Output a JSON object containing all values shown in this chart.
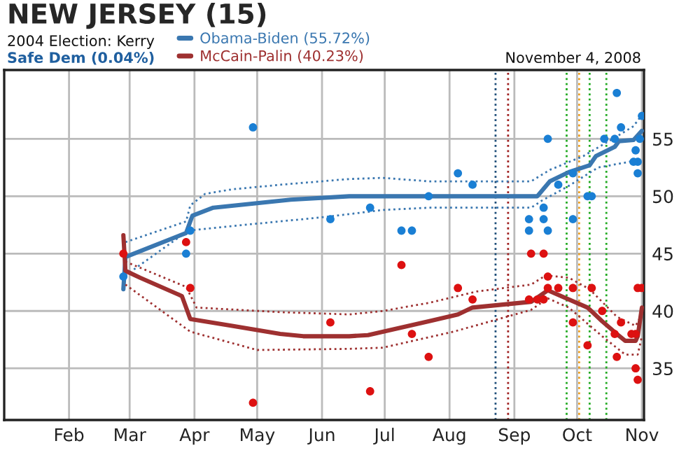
{
  "chart_data": {
    "type": "scatter",
    "title": "NEW JERSEY (15)",
    "annotations": [
      "2004 Election: Kerry",
      "Safe Dem (0.04%)",
      "November 4, 2008"
    ],
    "xlim": [
      "2008-01-01",
      "2008-11-02"
    ],
    "xticks": [
      {
        "value": "2008-02-01",
        "label": "Feb"
      },
      {
        "value": "2008-03-01",
        "label": "Mar"
      },
      {
        "value": "2008-04-01",
        "label": "Apr"
      },
      {
        "value": "2008-05-01",
        "label": "May"
      },
      {
        "value": "2008-06-01",
        "label": "Jun"
      },
      {
        "value": "2008-07-01",
        "label": "Jul"
      },
      {
        "value": "2008-08-01",
        "label": "Aug"
      },
      {
        "value": "2008-09-01",
        "label": "Sep"
      },
      {
        "value": "2008-10-01",
        "label": "Oct"
      },
      {
        "value": "2008-11-01",
        "label": "Nov"
      }
    ],
    "ylim": [
      30.5,
      61
    ],
    "yticks": [
      35,
      40,
      45,
      50,
      55
    ],
    "grid": true,
    "legend": "top",
    "ref_lines": [
      {
        "axis": "x",
        "value": "2008-08-23",
        "color": "#1f4e79",
        "line_style": "dotted"
      },
      {
        "axis": "x",
        "value": "2008-08-29",
        "color": "#a02020",
        "line_style": "dotted"
      },
      {
        "axis": "x",
        "value": "2008-09-26",
        "color": "#22aa22",
        "line_style": "dotted"
      },
      {
        "axis": "x",
        "value": "2008-10-02",
        "color": "#f0a020",
        "line_style": "dotted"
      },
      {
        "axis": "x",
        "value": "2008-10-07",
        "color": "#22aa22",
        "line_style": "dotted"
      },
      {
        "axis": "x",
        "value": "2008-10-15",
        "color": "#22aa22",
        "line_style": "dotted"
      }
    ],
    "series": [
      {
        "color": "#1a7fd4",
        "marker": "circle",
        "x": [
          "2008-02-27",
          "2008-03-28",
          "2008-03-30",
          "2008-04-29",
          "2008-06-05",
          "2008-06-24",
          "2008-07-09",
          "2008-07-22",
          "2008-08-05",
          "2008-08-12",
          "2008-09-08",
          "2008-09-08",
          "2008-09-15",
          "2008-09-15",
          "2008-09-17",
          "2008-09-22",
          "2008-09-29",
          "2008-10-06",
          "2008-10-08",
          "2008-10-14",
          "2008-10-19",
          "2008-10-20",
          "2008-10-22",
          "2008-10-29",
          "2008-10-30",
          "2008-10-30",
          "2008-10-31",
          "2008-11-01"
        ],
        "values": [
          43,
          45,
          47,
          56,
          48,
          49,
          47,
          50,
          52,
          51,
          48,
          47,
          48,
          49,
          55,
          51,
          52,
          50,
          50,
          55,
          55,
          59,
          56,
          54,
          53,
          52,
          55,
          57
        ]
      },
      {
        "color": "#1a7fd4",
        "marker": "circle",
        "x": [
          "2008-07-14",
          "2008-09-17",
          "2008-09-29",
          "2008-10-28"
        ],
        "values": [
          47,
          47,
          48,
          53
        ]
      },
      {
        "color": "#dd1111",
        "marker": "circle",
        "x": [
          "2008-02-27",
          "2008-03-28",
          "2008-03-30",
          "2008-04-29",
          "2008-06-05",
          "2008-06-24",
          "2008-07-09",
          "2008-07-22",
          "2008-08-05",
          "2008-08-12",
          "2008-09-08",
          "2008-09-09",
          "2008-09-12",
          "2008-09-15",
          "2008-09-15",
          "2008-09-17",
          "2008-09-22",
          "2008-09-29",
          "2008-10-06",
          "2008-10-08",
          "2008-10-13",
          "2008-10-19",
          "2008-10-20",
          "2008-10-22",
          "2008-10-29",
          "2008-10-29",
          "2008-10-30",
          "2008-10-30",
          "2008-11-01"
        ],
        "values": [
          45,
          46,
          42,
          32,
          39,
          33,
          44,
          36,
          42,
          41,
          41,
          45,
          41,
          45,
          41,
          42,
          42,
          42,
          37,
          42,
          40,
          38,
          36,
          39,
          38,
          35,
          34,
          42,
          42
        ]
      },
      {
        "color": "#dd1111",
        "marker": "circle",
        "x": [
          "2008-07-14",
          "2008-09-17",
          "2008-09-29",
          "2008-10-27"
        ],
        "values": [
          38,
          43,
          39,
          38
        ]
      },
      {
        "type": "line",
        "name": "Obama-Biden (55.72%)",
        "color": "#3a77b0",
        "x": [
          "2008-02-27",
          "2008-02-28",
          "2008-03-28",
          "2008-03-31",
          "2008-04-10",
          "2008-05-17",
          "2008-06-14",
          "2008-06-28",
          "2008-09-12",
          "2008-09-18",
          "2008-09-27",
          "2008-10-07",
          "2008-10-10",
          "2008-10-19",
          "2008-10-21",
          "2008-10-28",
          "2008-11-01"
        ],
        "values": [
          41.9,
          44.7,
          46.8,
          48.3,
          49.0,
          49.7,
          50.0,
          50.0,
          50.0,
          51.3,
          52.1,
          52.7,
          53.5,
          54.3,
          54.8,
          54.9,
          55.7
        ]
      },
      {
        "type": "line",
        "color": "#3a77b0",
        "line_style": "dotted",
        "x": [
          "2008-02-28",
          "2008-03-28",
          "2008-03-30",
          "2008-04-06",
          "2008-04-19",
          "2008-05-12",
          "2008-06-14",
          "2008-06-30",
          "2008-07-22",
          "2008-09-09",
          "2008-09-18",
          "2008-10-04",
          "2008-10-19",
          "2008-10-28",
          "2008-11-01"
        ],
        "values": [
          46.0,
          47.8,
          49.2,
          50.2,
          50.6,
          51.0,
          51.5,
          51.6,
          51.3,
          51.3,
          52.3,
          53.5,
          55.1,
          56.1,
          57.1
        ]
      },
      {
        "type": "line",
        "color": "#3a77b0",
        "line_style": "dotted",
        "x": [
          "2008-02-28",
          "2008-03-29",
          "2008-04-19",
          "2008-06-03",
          "2008-06-30",
          "2008-07-22",
          "2008-09-09",
          "2008-09-14",
          "2008-09-27",
          "2008-10-11",
          "2008-10-29",
          "2008-11-01"
        ],
        "values": [
          43.1,
          47.0,
          47.4,
          48.2,
          48.8,
          49.0,
          49.0,
          49.6,
          50.9,
          52.5,
          53.1,
          52.9
        ]
      },
      {
        "type": "line",
        "name": "McCain-Palin (40.23%)",
        "color": "#9e3030",
        "x": [
          "2008-02-27",
          "2008-02-28",
          "2008-03-06",
          "2008-03-26",
          "2008-03-30",
          "2008-04-19",
          "2008-05-12",
          "2008-05-23",
          "2008-06-14",
          "2008-06-23",
          "2008-07-22",
          "2008-08-05",
          "2008-08-12",
          "2008-09-09",
          "2008-09-17",
          "2008-10-06",
          "2008-10-13",
          "2008-10-20",
          "2008-10-24",
          "2008-10-29",
          "2008-10-30",
          "2008-11-01"
        ],
        "values": [
          46.6,
          43.5,
          42.9,
          41.3,
          39.3,
          38.7,
          38.0,
          37.8,
          37.8,
          37.9,
          39.1,
          39.7,
          40.3,
          40.8,
          41.8,
          40.3,
          39.1,
          38.0,
          37.4,
          37.4,
          37.8,
          40.3
        ]
      },
      {
        "type": "line",
        "color": "#9e3030",
        "line_style": "dotted",
        "x": [
          "2008-02-28",
          "2008-03-28",
          "2008-04-02",
          "2008-05-12",
          "2008-06-14",
          "2008-06-30",
          "2008-07-22",
          "2008-08-14",
          "2008-09-09",
          "2008-09-16",
          "2008-09-27",
          "2008-10-07",
          "2008-10-20",
          "2008-10-29",
          "2008-11-01"
        ],
        "values": [
          44.3,
          42.1,
          40.3,
          39.9,
          39.7,
          40.0,
          40.7,
          41.7,
          42.3,
          43.1,
          42.9,
          41.9,
          39.5,
          38.7,
          39.7
        ]
      },
      {
        "type": "line",
        "color": "#9e3030",
        "line_style": "dotted",
        "x": [
          "2008-02-28",
          "2008-03-30",
          "2008-05-01",
          "2008-06-14",
          "2008-06-30",
          "2008-08-03",
          "2008-09-09",
          "2008-09-17",
          "2008-09-27",
          "2008-10-13",
          "2008-10-24",
          "2008-10-30",
          "2008-11-01"
        ],
        "values": [
          42.3,
          38.2,
          36.6,
          36.7,
          36.8,
          38.2,
          40.1,
          41.1,
          40.3,
          37.8,
          36.2,
          36.2,
          37.8
        ]
      }
    ]
  }
}
